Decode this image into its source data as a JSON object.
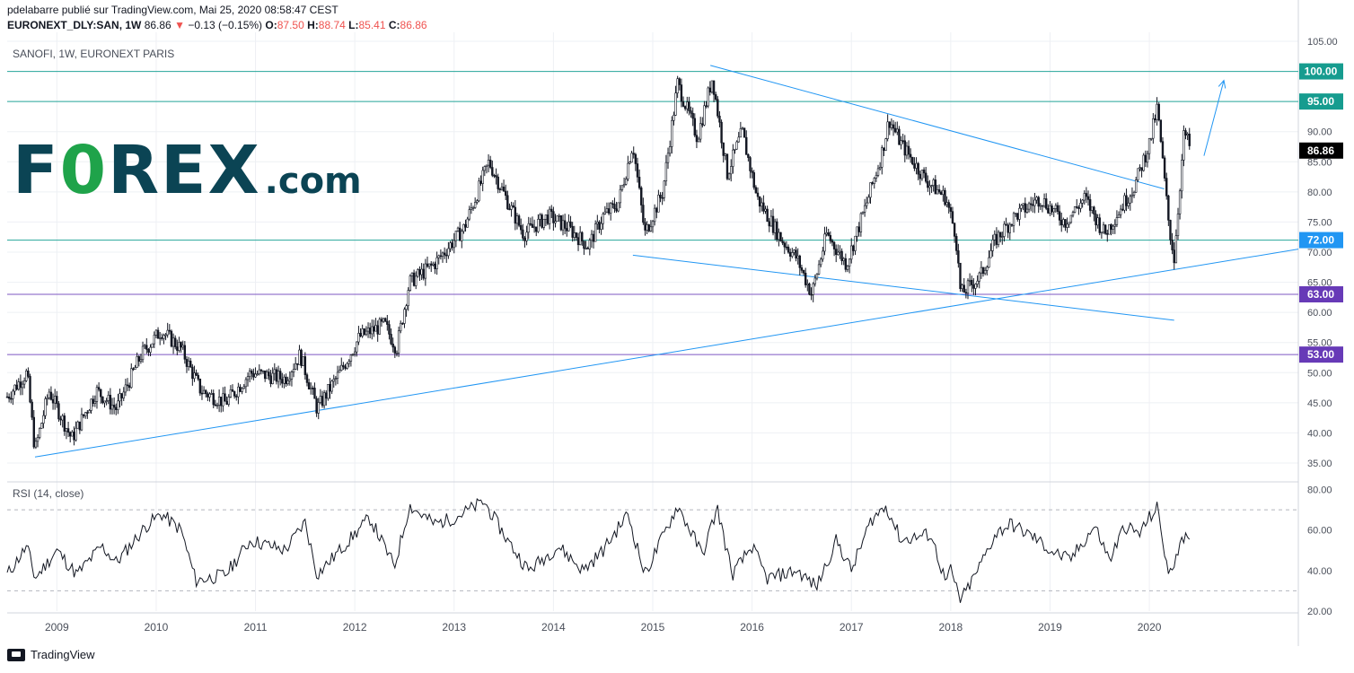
{
  "header": {
    "line1": "pdelabarre publié sur TradingView.com, Mai 25, 2020 08:58:47 CEST",
    "symbol": "EURONEXT_DLY:SAN, 1W",
    "last": "86.86",
    "change_arrow": "▼",
    "change": "−0.13 (−0.15%)",
    "o_label": "O:",
    "o_val": "87.50",
    "h_label": "H:",
    "h_val": "88.74",
    "l_label": "L:",
    "l_val": "85.41",
    "c_label": "C:",
    "c_val": "86.86"
  },
  "pane_title": "SANOFI, 1W, EURONEXT PARIS",
  "rsi_title": "RSI (14, close)",
  "logo": {
    "part1": "F",
    "part2": "0",
    "part3": "REX",
    "part4": ".com"
  },
  "footer": {
    "brand": "TradingView"
  },
  "colors": {
    "teal_line": "#26a69a",
    "purple_line": "#7e57c2",
    "trend": "#2196f3",
    "label_teal": "#169c8f",
    "label_blue": "#2196f3",
    "label_purple": "#673ab7",
    "grid": "#eef0f4"
  },
  "chart_data": [
    {
      "type": "candlestick",
      "title": "SANOFI, 1W, EURONEXT PARIS",
      "ylim": [
        35,
        105
      ],
      "xlim": [
        2008.5,
        2021.5
      ],
      "y_ticks": [
        35,
        40,
        45,
        50,
        55,
        60,
        65,
        70,
        75,
        80,
        85,
        90,
        95,
        100,
        105
      ],
      "x_ticks": [
        {
          "label": "2009",
          "x": 2009
        },
        {
          "label": "2010",
          "x": 2010
        },
        {
          "label": "2011",
          "x": 2011
        },
        {
          "label": "2012",
          "x": 2012
        },
        {
          "label": "2013",
          "x": 2013
        },
        {
          "label": "2014",
          "x": 2014
        },
        {
          "label": "2015",
          "x": 2015
        },
        {
          "label": "2016",
          "x": 2016
        },
        {
          "label": "2017",
          "x": 2017
        },
        {
          "label": "2018",
          "x": 2018
        },
        {
          "label": "2019",
          "x": 2019
        },
        {
          "label": "2020",
          "x": 2020
        }
      ],
      "price_path": [
        [
          2008.5,
          46
        ],
        [
          2008.7,
          50
        ],
        [
          2008.78,
          37
        ],
        [
          2008.92,
          47
        ],
        [
          2009.15,
          39
        ],
        [
          2009.4,
          47
        ],
        [
          2009.6,
          44
        ],
        [
          2009.85,
          53
        ],
        [
          2010.05,
          57
        ],
        [
          2010.25,
          54
        ],
        [
          2010.45,
          47
        ],
        [
          2010.7,
          45
        ],
        [
          2010.95,
          50
        ],
        [
          2011.3,
          49
        ],
        [
          2011.45,
          53
        ],
        [
          2011.62,
          44
        ],
        [
          2011.85,
          50
        ],
        [
          2012.05,
          56
        ],
        [
          2012.3,
          58
        ],
        [
          2012.42,
          54
        ],
        [
          2012.55,
          65
        ],
        [
          2012.8,
          68
        ],
        [
          2013.1,
          74
        ],
        [
          2013.35,
          85
        ],
        [
          2013.55,
          78
        ],
        [
          2013.7,
          73
        ],
        [
          2013.95,
          76
        ],
        [
          2014.15,
          74
        ],
        [
          2014.35,
          71
        ],
        [
          2014.5,
          76
        ],
        [
          2014.65,
          78
        ],
        [
          2014.8,
          88
        ],
        [
          2014.92,
          73
        ],
        [
          2015.1,
          80
        ],
        [
          2015.25,
          98
        ],
        [
          2015.45,
          89
        ],
        [
          2015.6,
          99
        ],
        [
          2015.75,
          83
        ],
        [
          2015.9,
          90
        ],
        [
          2016.05,
          79
        ],
        [
          2016.3,
          72
        ],
        [
          2016.45,
          69
        ],
        [
          2016.6,
          63
        ],
        [
          2016.75,
          73
        ],
        [
          2016.95,
          68
        ],
        [
          2017.15,
          78
        ],
        [
          2017.3,
          86
        ],
        [
          2017.38,
          92
        ],
        [
          2017.5,
          88
        ],
        [
          2017.75,
          82
        ],
        [
          2017.95,
          79
        ],
        [
          2018.05,
          73
        ],
        [
          2018.1,
          63
        ],
        [
          2018.3,
          66
        ],
        [
          2018.45,
          72
        ],
        [
          2018.65,
          76
        ],
        [
          2018.9,
          79
        ],
        [
          2019.15,
          75
        ],
        [
          2019.35,
          79
        ],
        [
          2019.55,
          73
        ],
        [
          2019.7,
          77
        ],
        [
          2019.85,
          81
        ],
        [
          2020.0,
          88
        ],
        [
          2020.08,
          94
        ],
        [
          2020.2,
          74
        ],
        [
          2020.25,
          69
        ],
        [
          2020.35,
          90
        ],
        [
          2020.42,
          86.86
        ]
      ],
      "horizontal_levels": [
        {
          "value": 100,
          "label": "100.00",
          "color": "#26a69a",
          "label_color": "#169c8f"
        },
        {
          "value": 95,
          "label": "95.00",
          "color": "#26a69a",
          "label_color": "#169c8f"
        },
        {
          "value": 72,
          "label": "72.00",
          "color": "#26a69a",
          "label_color": "#2196f3"
        },
        {
          "value": 63,
          "label": "63.00",
          "color": "#7e57c2",
          "label_color": "#673ab7"
        },
        {
          "value": 53,
          "label": "53.00",
          "color": "#7e57c2",
          "label_color": "#673ab7"
        }
      ],
      "last_price": {
        "value": 86.86,
        "label": "86.86"
      },
      "trendlines": [
        {
          "from": [
            2008.78,
            36
          ],
          "to": [
            2021.5,
            70.5
          ]
        },
        {
          "from": [
            2015.58,
            101
          ],
          "to": [
            2020.15,
            80.5
          ]
        },
        {
          "from": [
            2014.8,
            69.5
          ],
          "to": [
            2020.25,
            58.7
          ]
        }
      ],
      "arrow": {
        "from": [
          2020.55,
          86
        ],
        "to": [
          2020.75,
          98.5
        ]
      }
    },
    {
      "type": "line",
      "title": "RSI (14, close)",
      "ylim": [
        20,
        82
      ],
      "y_ticks": [
        20,
        40,
        60,
        80
      ],
      "bands": [
        30,
        70
      ],
      "rsi_path": [
        [
          2008.5,
          38
        ],
        [
          2008.7,
          52
        ],
        [
          2008.78,
          36
        ],
        [
          2009.0,
          50
        ],
        [
          2009.2,
          38
        ],
        [
          2009.45,
          52
        ],
        [
          2009.6,
          44
        ],
        [
          2009.9,
          62
        ],
        [
          2010.05,
          68
        ],
        [
          2010.25,
          60
        ],
        [
          2010.4,
          35
        ],
        [
          2010.7,
          38
        ],
        [
          2010.95,
          55
        ],
        [
          2011.3,
          50
        ],
        [
          2011.5,
          64
        ],
        [
          2011.62,
          38
        ],
        [
          2011.85,
          50
        ],
        [
          2012.15,
          66
        ],
        [
          2012.4,
          42
        ],
        [
          2012.55,
          72
        ],
        [
          2012.8,
          63
        ],
        [
          2013.0,
          66
        ],
        [
          2013.3,
          74
        ],
        [
          2013.55,
          54
        ],
        [
          2013.75,
          40
        ],
        [
          2014.05,
          52
        ],
        [
          2014.3,
          40
        ],
        [
          2014.5,
          50
        ],
        [
          2014.75,
          68
        ],
        [
          2014.92,
          38
        ],
        [
          2015.25,
          72
        ],
        [
          2015.5,
          48
        ],
        [
          2015.65,
          71
        ],
        [
          2015.8,
          38
        ],
        [
          2016.0,
          52
        ],
        [
          2016.15,
          36
        ],
        [
          2016.45,
          40
        ],
        [
          2016.65,
          32
        ],
        [
          2016.85,
          55
        ],
        [
          2017.0,
          40
        ],
        [
          2017.2,
          65
        ],
        [
          2017.35,
          72
        ],
        [
          2017.5,
          55
        ],
        [
          2017.8,
          58
        ],
        [
          2017.95,
          34
        ],
        [
          2018.0,
          40
        ],
        [
          2018.1,
          25
        ],
        [
          2018.25,
          38
        ],
        [
          2018.45,
          58
        ],
        [
          2018.6,
          63
        ],
        [
          2018.85,
          56
        ],
        [
          2019.0,
          50
        ],
        [
          2019.2,
          45
        ],
        [
          2019.45,
          62
        ],
        [
          2019.6,
          45
        ],
        [
          2019.75,
          62
        ],
        [
          2019.9,
          58
        ],
        [
          2020.0,
          66
        ],
        [
          2020.08,
          71
        ],
        [
          2020.2,
          36
        ],
        [
          2020.33,
          58
        ],
        [
          2020.42,
          52
        ]
      ]
    }
  ]
}
